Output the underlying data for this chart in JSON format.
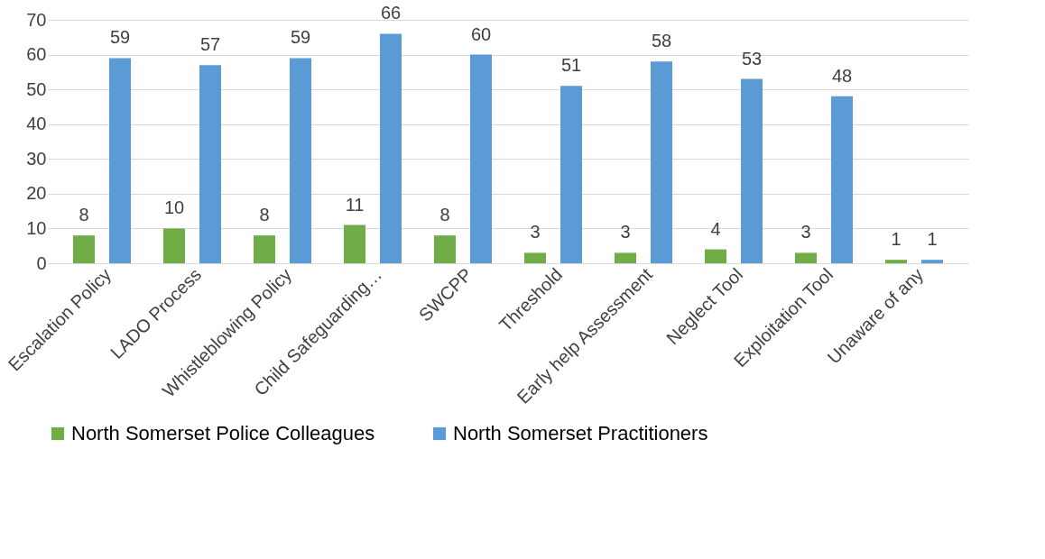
{
  "chart_data": {
    "type": "bar",
    "categories": [
      "Escalation Policy",
      "LADO Process",
      "Whistleblowing Policy",
      "Child Safeguarding…",
      "SWCPP",
      "Threshold",
      "Early help Assessment",
      "Neglect Tool",
      "Exploitation Tool",
      "Unaware of any"
    ],
    "series": [
      {
        "name": "North Somerset Police Colleagues",
        "color": "#70ad47",
        "values": [
          8,
          10,
          8,
          11,
          8,
          3,
          3,
          4,
          3,
          1
        ]
      },
      {
        "name": "North Somerset Practitioners",
        "color": "#5b9bd5",
        "values": [
          59,
          57,
          59,
          66,
          60,
          51,
          58,
          53,
          48,
          1
        ]
      }
    ],
    "ylim": [
      0,
      70
    ],
    "yticks": [
      0,
      10,
      20,
      30,
      40,
      50,
      60,
      70
    ],
    "grid": "y",
    "legend": "bottom",
    "data_labels": true
  }
}
